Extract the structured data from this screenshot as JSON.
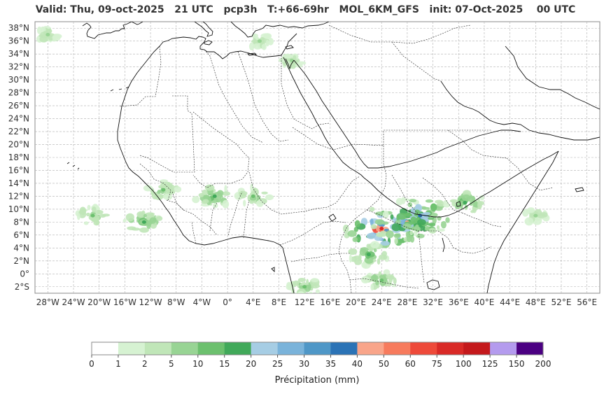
{
  "title": "Valid: Thu, 09-oct-2025   21 UTC   pcp3h   T:+66-69hr   MOL_6KM_GFS   init: 07-Oct-2025    00 UTC",
  "map": {
    "lon_range": [
      -30,
      58
    ],
    "lat_range": [
      -3,
      39
    ],
    "lat_ticks": [
      "2°S",
      "0°",
      "2°N",
      "4°N",
      "6°N",
      "8°N",
      "10°N",
      "12°N",
      "14°N",
      "16°N",
      "18°N",
      "20°N",
      "22°N",
      "24°N",
      "26°N",
      "28°N",
      "30°N",
      "32°N",
      "34°N",
      "36°N",
      "38°N"
    ],
    "lon_ticks": [
      "28°W",
      "24°W",
      "20°W",
      "16°W",
      "12°W",
      "8°W",
      "4°W",
      "0°",
      "4°E",
      "8°E",
      "12°E",
      "16°E",
      "20°E",
      "24°E",
      "28°E",
      "32°E",
      "36°E",
      "40°E",
      "44°E",
      "48°E",
      "52°E",
      "56°E"
    ],
    "gridlines": true,
    "grid_color": "#b0b0b0"
  },
  "colorbar": {
    "label": "Précipitation (mm)",
    "bounds": [
      "0",
      "1",
      "2",
      "5",
      "10",
      "15",
      "20",
      "25",
      "30",
      "35",
      "40",
      "50",
      "60",
      "75",
      "100",
      "125",
      "150",
      "200"
    ],
    "colors": [
      "#ffffff",
      "#d6f2d2",
      "#c0e6b8",
      "#98d494",
      "#6cc06e",
      "#41a95a",
      "#a6cde4",
      "#7ab3da",
      "#4f97c7",
      "#2b73b6",
      "#f9a58a",
      "#f77b5d",
      "#ee4a3a",
      "#d92a27",
      "#c4191c",
      "#b49bee",
      "#4b0082"
    ]
  },
  "chart_data": {
    "type": "heatmap",
    "title": "Valid: Thu, 09-oct-2025   21 UTC   pcp3h   T:+66-69hr   MOL_6KM_GFS   init: 07-Oct-2025    00 UTC",
    "variable": "pcp3h",
    "model": "MOL_6KM_GFS",
    "valid": "Thu, 09-oct-2025 21 UTC",
    "forecast_hours": "+66-69hr",
    "init": "07-Oct-2025 00 UTC",
    "legend_label": "Précipitation (mm)",
    "precip_regions": [
      {
        "lon": 24,
        "lat": 7,
        "max_mm": 75
      },
      {
        "lon": 28,
        "lat": 8,
        "max_mm": 40
      },
      {
        "lon": 30,
        "lat": 9,
        "max_mm": 35
      },
      {
        "lon": -13,
        "lat": 8,
        "max_mm": 15
      },
      {
        "lon": -21,
        "lat": 9,
        "max_mm": 10
      },
      {
        "lon": -2,
        "lat": 12,
        "max_mm": 15
      },
      {
        "lon": 4,
        "lat": 12,
        "max_mm": 10
      },
      {
        "lon": -10,
        "lat": 13,
        "max_mm": 10
      },
      {
        "lon": 37,
        "lat": 11,
        "max_mm": 15
      },
      {
        "lon": 22,
        "lat": 3,
        "max_mm": 15
      },
      {
        "lon": 24,
        "lat": -1,
        "max_mm": 10
      },
      {
        "lon": 12,
        "lat": -2,
        "max_mm": 10
      },
      {
        "lon": 10,
        "lat": 33,
        "max_mm": 5
      },
      {
        "lon": 5,
        "lat": 36,
        "max_mm": 5
      },
      {
        "lon": -28,
        "lat": 37,
        "max_mm": 5
      },
      {
        "lon": 48,
        "lat": 9,
        "max_mm": 5
      }
    ]
  }
}
